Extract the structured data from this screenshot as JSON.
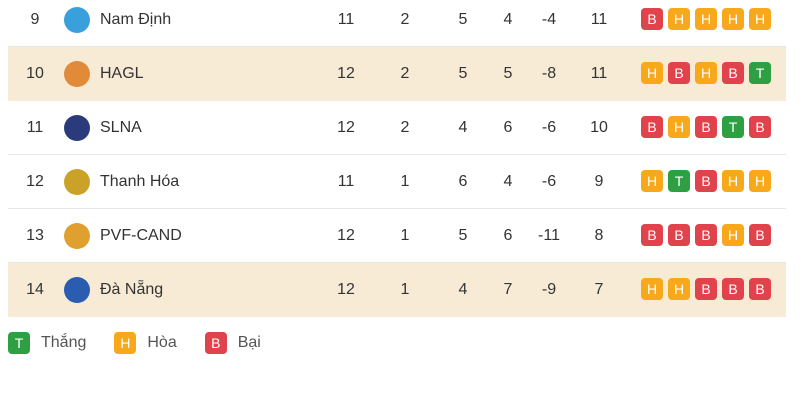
{
  "colors": {
    "T": "#2ea043",
    "H": "#f7a81b",
    "B": "#e0434b",
    "highlight": "#f7ebd5"
  },
  "rows": [
    {
      "rank": "9",
      "team": "Nam Định",
      "logo": "nam-dinh-logo",
      "played": "11",
      "w": "2",
      "d": "5",
      "l": "4",
      "gd": "-4",
      "pts": "11",
      "form": [
        "B",
        "H",
        "H",
        "H",
        "H"
      ],
      "highlight": false,
      "logo_color": "#3aa0dc"
    },
    {
      "rank": "10",
      "team": "HAGL",
      "logo": "hagl-logo",
      "played": "12",
      "w": "2",
      "d": "5",
      "l": "5",
      "gd": "-8",
      "pts": "11",
      "form": [
        "H",
        "B",
        "H",
        "B",
        "T"
      ],
      "highlight": true,
      "logo_color": "#e08a3a"
    },
    {
      "rank": "11",
      "team": "SLNA",
      "logo": "slna-logo",
      "played": "12",
      "w": "2",
      "d": "4",
      "l": "6",
      "gd": "-6",
      "pts": "10",
      "form": [
        "B",
        "H",
        "B",
        "T",
        "B"
      ],
      "highlight": false,
      "logo_color": "#2a3a7a"
    },
    {
      "rank": "12",
      "team": "Thanh Hóa",
      "logo": "thanh-hoa-logo",
      "played": "11",
      "w": "1",
      "d": "6",
      "l": "4",
      "gd": "-6",
      "pts": "9",
      "form": [
        "H",
        "T",
        "B",
        "H",
        "H"
      ],
      "highlight": false,
      "logo_color": "#c9a227"
    },
    {
      "rank": "13",
      "team": "PVF-CAND",
      "logo": "pvf-cand-logo",
      "played": "12",
      "w": "1",
      "d": "5",
      "l": "6",
      "gd": "-11",
      "pts": "8",
      "form": [
        "B",
        "B",
        "B",
        "H",
        "B"
      ],
      "highlight": false,
      "logo_color": "#e0a030"
    },
    {
      "rank": "14",
      "team": "Đà Nẵng",
      "logo": "da-nang-logo",
      "played": "12",
      "w": "1",
      "d": "4",
      "l": "7",
      "gd": "-9",
      "pts": "7",
      "form": [
        "H",
        "H",
        "B",
        "B",
        "B"
      ],
      "highlight": true,
      "logo_color": "#2a5cb0"
    }
  ],
  "legend": [
    {
      "code": "T",
      "label": "Thắng"
    },
    {
      "code": "H",
      "label": "Hòa"
    },
    {
      "code": "B",
      "label": "Bại"
    }
  ]
}
